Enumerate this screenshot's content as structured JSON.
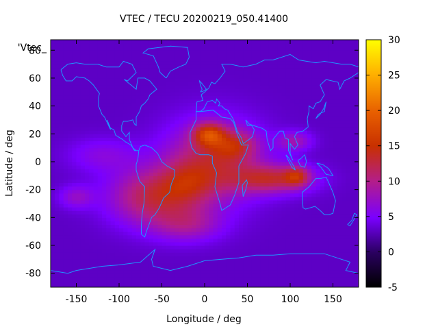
{
  "chart_data": {
    "type": "heatmap",
    "title": "VTEC / TECU 20200219_050.41400",
    "xlabel": "Longitude / deg",
    "ylabel": "Latitude / deg",
    "series_label": "'Vtec_",
    "xlim": [
      -180,
      180
    ],
    "ylim": [
      -90,
      87.5
    ],
    "xticks": [
      -150,
      -100,
      -50,
      0,
      50,
      100,
      150
    ],
    "yticks": [
      -80,
      -60,
      -40,
      -20,
      0,
      20,
      40,
      60,
      80
    ],
    "colorbar": {
      "min": -5,
      "max": 30,
      "ticks": [
        -5,
        0,
        5,
        10,
        15,
        20,
        25,
        30
      ]
    },
    "grid": {
      "lon_step": 5,
      "lat_step": 2.5
    },
    "background_value": 3,
    "blobs": [
      {
        "lon": 10,
        "lat": 0,
        "slon": 55,
        "slat": 28,
        "amp": 9
      },
      {
        "lon": 5,
        "lat": 20,
        "slon": 18,
        "slat": 8,
        "amp": 10
      },
      {
        "lon": 35,
        "lat": 12,
        "slon": 25,
        "slat": 10,
        "amp": 6
      },
      {
        "lon": 80,
        "lat": -12,
        "slon": 45,
        "slat": 10,
        "amp": 9
      },
      {
        "lon": 108,
        "lat": -10,
        "slon": 14,
        "slat": 7,
        "amp": 7
      },
      {
        "lon": 105,
        "lat": 15,
        "slon": 20,
        "slat": 7,
        "amp": 5
      },
      {
        "lon": -60,
        "lat": -25,
        "slon": 50,
        "slat": 20,
        "amp": 9
      },
      {
        "lon": -20,
        "lat": -45,
        "slon": 40,
        "slat": 12,
        "amp": 5
      },
      {
        "lon": -20,
        "lat": -15,
        "slon": 30,
        "slat": 15,
        "amp": 4
      },
      {
        "lon": -150,
        "lat": -25,
        "slon": 20,
        "slat": 8,
        "amp": 4
      },
      {
        "lon": -120,
        "lat": 5,
        "slon": 40,
        "slat": 12,
        "amp": 3
      }
    ],
    "coastlines": [
      [
        [
          -168,
          66
        ],
        [
          -160,
          70
        ],
        [
          -150,
          71
        ],
        [
          -140,
          70
        ],
        [
          -130,
          70
        ],
        [
          -125,
          70
        ],
        [
          -115,
          68
        ],
        [
          -100,
          68
        ],
        [
          -95,
          72
        ],
        [
          -85,
          70
        ],
        [
          -80,
          64
        ],
        [
          -90,
          58
        ],
        [
          -94,
          59
        ],
        [
          -80,
          52
        ],
        [
          -78,
          60
        ],
        [
          -70,
          60
        ],
        [
          -64,
          58
        ],
        [
          -60,
          55
        ],
        [
          -56,
          52
        ],
        [
          -64,
          48
        ],
        [
          -66,
          45
        ],
        [
          -70,
          42
        ],
        [
          -74,
          40
        ],
        [
          -76,
          36
        ],
        [
          -80,
          32
        ],
        [
          -80,
          26
        ],
        [
          -82,
          27
        ],
        [
          -84,
          30
        ],
        [
          -90,
          29
        ],
        [
          -95,
          29
        ],
        [
          -97,
          26
        ],
        [
          -97,
          22
        ],
        [
          -92,
          18
        ],
        [
          -88,
          21
        ],
        [
          -88,
          16
        ],
        [
          -84,
          10
        ],
        [
          -80,
          8
        ],
        [
          -77,
          8
        ],
        [
          -82,
          8
        ],
        [
          -86,
          12
        ],
        [
          -92,
          14
        ],
        [
          -96,
          16
        ],
        [
          -104,
          19
        ],
        [
          -106,
          23
        ],
        [
          -110,
          24
        ],
        [
          -114,
          30
        ],
        [
          -110,
          23
        ],
        [
          -117,
          32
        ],
        [
          -120,
          34
        ],
        [
          -124,
          40
        ],
        [
          -124,
          46
        ],
        [
          -123,
          49
        ],
        [
          -130,
          55
        ],
        [
          -135,
          58
        ],
        [
          -140,
          60
        ],
        [
          -150,
          61
        ],
        [
          -155,
          58
        ],
        [
          -162,
          58
        ],
        [
          -166,
          62
        ],
        [
          -168,
          66
        ]
      ],
      [
        [
          -77,
          8
        ],
        [
          -75,
          11
        ],
        [
          -70,
          12
        ],
        [
          -62,
          10
        ],
        [
          -55,
          6
        ],
        [
          -50,
          0
        ],
        [
          -44,
          -3
        ],
        [
          -35,
          -6
        ],
        [
          -35,
          -10
        ],
        [
          -39,
          -16
        ],
        [
          -41,
          -22
        ],
        [
          -48,
          -26
        ],
        [
          -53,
          -33
        ],
        [
          -58,
          -38
        ],
        [
          -62,
          -40
        ],
        [
          -65,
          -45
        ],
        [
          -68,
          -50
        ],
        [
          -70,
          -54
        ],
        [
          -74,
          -52
        ],
        [
          -74,
          -45
        ],
        [
          -73,
          -37
        ],
        [
          -71,
          -30
        ],
        [
          -70,
          -18
        ],
        [
          -76,
          -14
        ],
        [
          -80,
          -6
        ],
        [
          -80,
          -2
        ],
        [
          -78,
          2
        ],
        [
          -77,
          8
        ]
      ],
      [
        [
          -10,
          36
        ],
        [
          -5,
          36
        ],
        [
          10,
          37
        ],
        [
          20,
          32
        ],
        [
          30,
          31
        ],
        [
          34,
          28
        ],
        [
          38,
          20
        ],
        [
          43,
          12
        ],
        [
          51,
          12
        ],
        [
          48,
          6
        ],
        [
          40,
          -3
        ],
        [
          40,
          -15
        ],
        [
          35,
          -24
        ],
        [
          30,
          -31
        ],
        [
          20,
          -35
        ],
        [
          18,
          -30
        ],
        [
          12,
          -18
        ],
        [
          14,
          -8
        ],
        [
          9,
          -1
        ],
        [
          9,
          4
        ],
        [
          5,
          5
        ],
        [
          -5,
          5
        ],
        [
          -10,
          6
        ],
        [
          -15,
          10
        ],
        [
          -17,
          15
        ],
        [
          -17,
          21
        ],
        [
          -10,
          30
        ],
        [
          -10,
          36
        ]
      ],
      [
        [
          -10,
          36
        ],
        [
          -9,
          43
        ],
        [
          -2,
          44
        ],
        [
          -4,
          48
        ],
        [
          0,
          50
        ],
        [
          5,
          53
        ],
        [
          8,
          57
        ],
        [
          12,
          56
        ],
        [
          18,
          60
        ],
        [
          24,
          65
        ],
        [
          20,
          70
        ],
        [
          30,
          70
        ],
        [
          45,
          68
        ],
        [
          60,
          70
        ],
        [
          70,
          73
        ],
        [
          80,
          73
        ],
        [
          100,
          77
        ],
        [
          110,
          73
        ],
        [
          130,
          71
        ],
        [
          140,
          72
        ],
        [
          160,
          70
        ],
        [
          170,
          70
        ],
        [
          180,
          68
        ]
      ],
      [
        [
          180,
          64
        ],
        [
          170,
          60
        ],
        [
          163,
          58
        ],
        [
          158,
          52
        ],
        [
          156,
          57
        ],
        [
          142,
          59
        ],
        [
          135,
          55
        ],
        [
          140,
          48
        ],
        [
          135,
          43
        ],
        [
          130,
          42
        ],
        [
          127,
          38
        ],
        [
          122,
          40
        ],
        [
          122,
          36
        ],
        [
          120,
          31
        ],
        [
          121,
          25
        ],
        [
          115,
          22
        ],
        [
          108,
          21
        ],
        [
          105,
          18
        ],
        [
          109,
          12
        ],
        [
          105,
          9
        ],
        [
          100,
          13
        ],
        [
          100,
          6
        ],
        [
          103,
          1
        ],
        [
          98,
          8
        ],
        [
          98,
          16
        ],
        [
          94,
          17
        ],
        [
          92,
          22
        ],
        [
          88,
          22
        ],
        [
          85,
          20
        ],
        [
          80,
          16
        ],
        [
          80,
          10
        ],
        [
          77,
          8
        ],
        [
          73,
          16
        ],
        [
          72,
          22
        ],
        [
          67,
          24
        ],
        [
          62,
          25
        ],
        [
          57,
          26
        ],
        [
          52,
          27
        ],
        [
          48,
          30
        ],
        [
          50,
          26
        ],
        [
          55,
          26
        ],
        [
          58,
          23
        ],
        [
          56,
          18
        ],
        [
          52,
          16
        ],
        [
          45,
          13
        ],
        [
          43,
          17
        ],
        [
          38,
          22
        ],
        [
          35,
          28
        ],
        [
          33,
          31
        ],
        [
          30,
          34
        ],
        [
          27,
          37
        ],
        [
          23,
          38
        ],
        [
          20,
          40
        ],
        [
          16,
          40
        ],
        [
          18,
          42
        ],
        [
          14,
          45
        ],
        [
          13,
          42
        ],
        [
          9,
          44
        ],
        [
          3,
          43
        ],
        [
          -1,
          38
        ],
        [
          -5,
          36
        ],
        [
          -10,
          36
        ]
      ],
      [
        [
          114,
          -22
        ],
        [
          122,
          -18
        ],
        [
          130,
          -12
        ],
        [
          136,
          -12
        ],
        [
          142,
          -11
        ],
        [
          145,
          -15
        ],
        [
          150,
          -22
        ],
        [
          153,
          -28
        ],
        [
          150,
          -37
        ],
        [
          145,
          -38
        ],
        [
          140,
          -38
        ],
        [
          135,
          -35
        ],
        [
          129,
          -32
        ],
        [
          118,
          -34
        ],
        [
          115,
          -33
        ],
        [
          114,
          -22
        ]
      ],
      [
        [
          -45,
          60
        ],
        [
          -52,
          64
        ],
        [
          -54,
          68
        ],
        [
          -60,
          76
        ],
        [
          -72,
          78
        ],
        [
          -66,
          81
        ],
        [
          -40,
          83
        ],
        [
          -20,
          82
        ],
        [
          -18,
          75
        ],
        [
          -22,
          70
        ],
        [
          -30,
          68
        ],
        [
          -40,
          65
        ],
        [
          -45,
          60
        ]
      ],
      [
        [
          95,
          5
        ],
        [
          98,
          3
        ],
        [
          104,
          -3
        ],
        [
          106,
          -6
        ],
        [
          102,
          -4
        ],
        [
          97,
          2
        ],
        [
          95,
          5
        ]
      ],
      [
        [
          109,
          1
        ],
        [
          112,
          -3
        ],
        [
          117,
          -4
        ],
        [
          119,
          0
        ],
        [
          117,
          5
        ],
        [
          112,
          2
        ],
        [
          109,
          1
        ]
      ],
      [
        [
          131,
          -1
        ],
        [
          138,
          -2
        ],
        [
          145,
          -5
        ],
        [
          150,
          -10
        ],
        [
          142,
          -9
        ],
        [
          136,
          -4
        ],
        [
          131,
          -1
        ]
      ],
      [
        [
          -5,
          50
        ],
        [
          0,
          51
        ],
        [
          2,
          52
        ],
        [
          -3,
          56
        ],
        [
          -6,
          58
        ],
        [
          -5,
          55
        ],
        [
          -3,
          52
        ],
        [
          -5,
          50
        ]
      ],
      [
        [
          130,
          31
        ],
        [
          133,
          34
        ],
        [
          136,
          35
        ],
        [
          140,
          36
        ],
        [
          141,
          40
        ],
        [
          142,
          43
        ],
        [
          139,
          38
        ],
        [
          135,
          34
        ],
        [
          130,
          31
        ]
      ],
      [
        [
          45,
          -25
        ],
        [
          48,
          -20
        ],
        [
          50,
          -15
        ],
        [
          49,
          -13
        ],
        [
          44,
          -17
        ],
        [
          45,
          -25
        ]
      ],
      [
        [
          167,
          -45
        ],
        [
          172,
          -42
        ],
        [
          175,
          -37
        ],
        [
          178,
          -38
        ],
        [
          174,
          -42
        ],
        [
          170,
          -46
        ],
        [
          167,
          -45
        ]
      ],
      [
        [
          -180,
          -78
        ],
        [
          -160,
          -80
        ],
        [
          -150,
          -78
        ],
        [
          -120,
          -75
        ],
        [
          -100,
          -74
        ],
        [
          -75,
          -72
        ],
        [
          -62,
          -65
        ],
        [
          -58,
          -63
        ],
        [
          -62,
          -70
        ],
        [
          -60,
          -75
        ],
        [
          -40,
          -78
        ],
        [
          -20,
          -75
        ],
        [
          0,
          -71
        ],
        [
          20,
          -70
        ],
        [
          40,
          -69
        ],
        [
          60,
          -67
        ],
        [
          80,
          -67
        ],
        [
          100,
          -66
        ],
        [
          120,
          -66
        ],
        [
          140,
          -66
        ],
        [
          160,
          -70
        ],
        [
          170,
          -72
        ],
        [
          165,
          -78
        ],
        [
          180,
          -80
        ]
      ]
    ]
  }
}
